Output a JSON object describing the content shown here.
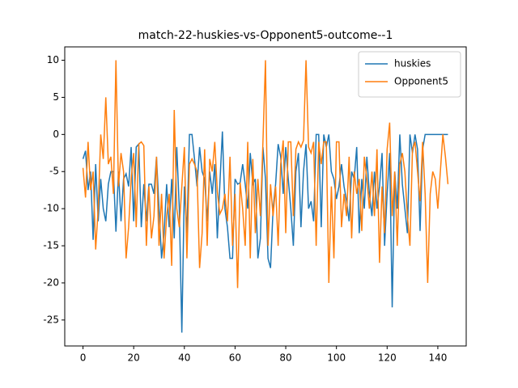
{
  "chart_data": {
    "type": "line",
    "title": "match-22-huskies-vs-Opponent5-outcome--1",
    "x": [
      0,
      1,
      2,
      3,
      4,
      5,
      6,
      7,
      8,
      9,
      10,
      11,
      12,
      13,
      14,
      15,
      16,
      17,
      18,
      19,
      20,
      21,
      22,
      23,
      24,
      25,
      26,
      27,
      28,
      29,
      30,
      31,
      32,
      33,
      34,
      35,
      36,
      37,
      38,
      39,
      40,
      41,
      42,
      43,
      44,
      45,
      46,
      47,
      48,
      49,
      50,
      51,
      52,
      53,
      54,
      55,
      56,
      57,
      58,
      59,
      60,
      61,
      62,
      63,
      64,
      65,
      66,
      67,
      68,
      69,
      70,
      71,
      72,
      73,
      74,
      75,
      76,
      77,
      78,
      79,
      80,
      81,
      82,
      83,
      84,
      85,
      86,
      87,
      88,
      89,
      90,
      91,
      92,
      93,
      94,
      95,
      96,
      97,
      98,
      99,
      100,
      101,
      102,
      103,
      104,
      105,
      106,
      107,
      108,
      109,
      110,
      111,
      112,
      113,
      114,
      115,
      116,
      117,
      118,
      119,
      120,
      121,
      122,
      123,
      124,
      125,
      126,
      127,
      128,
      129,
      130,
      131,
      132,
      133,
      134,
      135,
      136,
      137,
      138,
      139,
      140,
      141,
      142,
      143,
      144
    ],
    "series": [
      {
        "name": "huskies",
        "color": "#1f77b4",
        "values": [
          -3.3,
          -2.2,
          -7.5,
          -5,
          -14.2,
          -4,
          -11.7,
          -6,
          -10,
          -11.7,
          -6.7,
          -5,
          -5,
          -13.1,
          -5,
          -11.7,
          -6,
          -5.3,
          -7,
          -1.7,
          -11.7,
          -1.7,
          -1.3,
          -12.5,
          -6.7,
          -11.7,
          -6.7,
          -6.7,
          -8,
          -3,
          -10,
          -16.7,
          -13.3,
          -6.7,
          -12.5,
          -6,
          -14,
          -1.7,
          -10,
          -26.7,
          -7,
          -13.3,
          0,
          0,
          -3.3,
          -7,
          -1.7,
          -5,
          -6,
          -11.7,
          -5,
          -8,
          -4,
          -14,
          -6.7,
          0.4,
          -10,
          -12.5,
          -16.7,
          -16.7,
          -6,
          -6.7,
          -6.5,
          -4,
          -6.7,
          -10,
          -2.5,
          -6.7,
          -6,
          -16.7,
          -14,
          -1.7,
          -6,
          -16.7,
          -18,
          -10,
          -6.7,
          -1.3,
          -3,
          -8,
          -1.7,
          -6,
          -10,
          -15,
          -5,
          -2.5,
          -12.5,
          -5,
          -1.3,
          -10,
          -9,
          -11.7,
          0,
          0,
          -12.5,
          0,
          -1.7,
          0,
          -5,
          -6,
          -8.7,
          -7,
          -4,
          -7,
          -9,
          -11.7,
          -5,
          -6,
          -1.7,
          -13.3,
          -6,
          -10,
          -3,
          -8,
          -11,
          -5,
          -10,
          -7,
          -2.5,
          -15,
          -8,
          -2.5,
          -23.3,
          -5,
          -10,
          0,
          -6.7,
          -10,
          -13.3,
          0,
          -2.5,
          0,
          -2,
          -13,
          -2,
          0,
          0,
          0,
          0,
          0,
          0,
          0,
          0,
          0,
          0
        ]
      },
      {
        "name": "Opponent5",
        "color": "#ff7f0e",
        "values": [
          -4.5,
          -8.5,
          -1,
          -7.5,
          -5,
          -15.5,
          -10,
          0,
          -3.3,
          5,
          -4,
          -3,
          -8,
          10,
          -7,
          -2.5,
          -5,
          -16.7,
          -12.5,
          -6,
          -2.5,
          -12.5,
          -1.3,
          -1,
          -1.5,
          -15,
          -7,
          -14,
          -11,
          -3,
          -15,
          -8,
          -16.7,
          -11,
          -8,
          -17.7,
          3.3,
          -10,
          -12.5,
          -7,
          -1.7,
          -16.7,
          -4,
          -3.3,
          -4,
          -5,
          -18,
          -13.3,
          -2,
          -15,
          -3.3,
          -5,
          -1,
          -7.7,
          -10.7,
          -10,
          -8,
          -11.7,
          -3,
          -15,
          -8,
          -20.7,
          -6.5,
          -10,
          -15,
          -1,
          -16.7,
          -3.3,
          -13.3,
          -6,
          -11,
          -1,
          10,
          -15,
          -6.7,
          -11,
          -7,
          -15,
          -4,
          -0.8,
          -13.3,
          -1,
          -1,
          -11,
          -2,
          -1,
          -1.7,
          -0.8,
          10,
          -1.7,
          -2.5,
          -1,
          -15,
          -1,
          -4,
          -1,
          -1,
          -20,
          -7,
          -16.7,
          -1,
          -1,
          -12.5,
          -8,
          -11,
          -3,
          -14,
          -5,
          -8,
          -6,
          -13,
          -3,
          -6,
          -10,
          -5,
          -11,
          -2,
          -17.3,
          -7,
          -13.3,
          -2,
          1.6,
          -11,
          -5,
          -15,
          -4,
          -2.5,
          -5,
          -11,
          -15,
          -2,
          -1,
          -5,
          -9,
          -1,
          -8,
          -20,
          -8,
          -5,
          -6,
          -10,
          -5,
          0,
          -3,
          -6.7
        ]
      }
    ],
    "xlim": [
      -7.2,
      151.2
    ],
    "xticks": [
      0,
      20,
      40,
      60,
      80,
      100,
      120,
      140
    ],
    "ylim": [
      -28.5,
      11.8
    ],
    "yticks": [
      -25,
      -20,
      -15,
      -10,
      -5,
      0,
      5,
      10
    ],
    "legend": "upper right",
    "grid": false
  }
}
